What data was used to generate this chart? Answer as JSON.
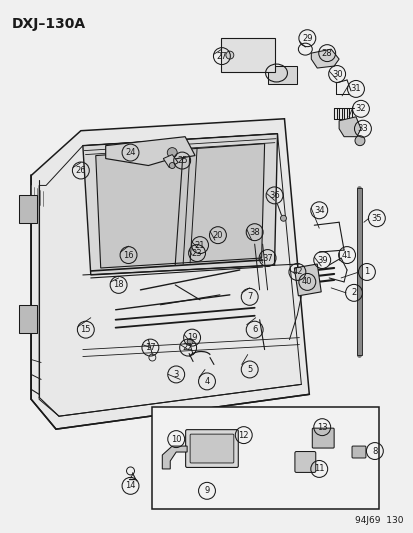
{
  "title": "DXJ–130A",
  "footer": "94J69  130",
  "bg_color": "#f0f0f0",
  "line_color": "#1a1a1a",
  "fig_width": 4.14,
  "fig_height": 5.33,
  "dpi": 100,
  "circle_labels": [
    [
      1,
      368,
      272
    ],
    [
      2,
      355,
      293
    ],
    [
      3,
      176,
      375
    ],
    [
      4,
      207,
      382
    ],
    [
      5,
      250,
      370
    ],
    [
      6,
      255,
      330
    ],
    [
      7,
      250,
      297
    ],
    [
      8,
      376,
      452
    ],
    [
      9,
      207,
      492
    ],
    [
      10,
      176,
      440
    ],
    [
      11,
      320,
      470
    ],
    [
      12,
      244,
      436
    ],
    [
      13,
      323,
      428
    ],
    [
      14,
      130,
      487
    ],
    [
      15,
      85,
      330
    ],
    [
      16,
      128,
      255
    ],
    [
      17,
      150,
      348
    ],
    [
      18,
      118,
      285
    ],
    [
      19,
      192,
      338
    ],
    [
      20,
      218,
      235
    ],
    [
      21,
      200,
      245
    ],
    [
      22,
      188,
      348
    ],
    [
      23,
      197,
      253
    ],
    [
      24,
      130,
      152
    ],
    [
      25,
      182,
      160
    ],
    [
      26,
      80,
      170
    ],
    [
      27,
      222,
      55
    ],
    [
      28,
      328,
      52
    ],
    [
      29,
      308,
      37
    ],
    [
      30,
      338,
      73
    ],
    [
      31,
      357,
      88
    ],
    [
      32,
      362,
      108
    ],
    [
      33,
      364,
      128
    ],
    [
      34,
      320,
      210
    ],
    [
      35,
      378,
      218
    ],
    [
      36,
      275,
      195
    ],
    [
      37,
      268,
      258
    ],
    [
      38,
      255,
      232
    ],
    [
      39,
      323,
      260
    ],
    [
      40,
      308,
      282
    ],
    [
      41,
      348,
      255
    ],
    [
      42,
      298,
      272
    ]
  ]
}
